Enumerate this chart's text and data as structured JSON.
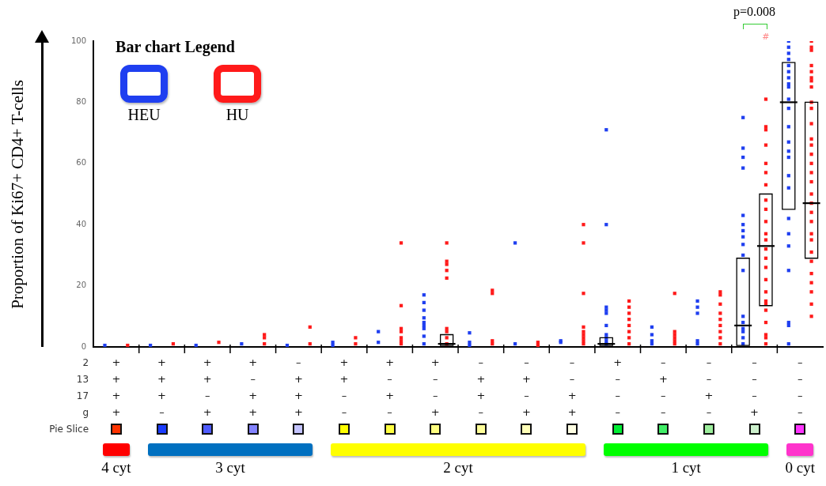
{
  "chart_data": {
    "type": "box",
    "ylabel": "Proportion of Ki67+ CD4+ T-cells",
    "legend_title": "Bar chart Legend",
    "legend": "top left",
    "marker": "square",
    "categories": [
      "+\n+\n+\n+",
      "+\n+\n+\n–",
      "+\n+\n–\n+",
      "+\n–\n+\n+",
      "–\n+\n+\n+",
      "+\n+\n–\n–",
      "+\n–\n+\n–",
      "+\n–\n–\n+",
      "–\n+\n+\n–",
      "–\n+\n–\n+",
      "–\n–\n+\n+",
      "+\n–\n–\n–",
      "–\n+\n–\n–",
      "–\n–\n+\n–",
      "–\n–\n–\n+",
      "–\n–\n–\n–"
    ],
    "ylim": [
      0,
      100
    ],
    "yticks": [
      0,
      20,
      40,
      60,
      80,
      100
    ],
    "annotations": [
      "2",
      "13",
      "17",
      "g",
      "Pie Slice",
      "4 cyt",
      "3 cyt",
      "2 cyt",
      "1 cyt",
      "0 cyt",
      "p=0.008",
      "#"
    ],
    "series": [
      {
        "color": "#000000",
        "boxes": [
          null,
          null,
          null,
          null,
          null,
          null,
          null,
          null,
          null,
          null,
          null,
          {
            "low": 0.5,
            "q1": 0.5,
            "median": 1,
            "q3": 3,
            "high": 3
          },
          null,
          null,
          {
            "low": 0.5,
            "q1": 0.5,
            "median": 7,
            "q3": 29,
            "high": 29
          },
          {
            "low": 45,
            "q1": 45,
            "median": 80,
            "q3": 93,
            "high": 93
          }
        ]
      },
      {
        "color": "#000000",
        "boxes": [
          null,
          null,
          null,
          null,
          null,
          null,
          null,
          {
            "low": 0.5,
            "q1": 0.5,
            "median": 1,
            "q3": 4,
            "high": 4
          },
          null,
          null,
          null,
          null,
          null,
          null,
          {
            "low": 13.5,
            "q1": 13.5,
            "median": 33,
            "q3": 50,
            "high": 50
          },
          {
            "low": 29,
            "q1": 29,
            "median": 47,
            "q3": 80,
            "high": 80
          }
        ]
      },
      {
        "type": "scatter",
        "name": "HEU",
        "color": "#1f3ff0",
        "x": [
          "+\n+\n+\n+",
          "+\n+\n+\n–",
          "+\n+\n–\n+",
          "+\n–\n+\n+",
          "–\n+\n+\n+",
          "+\n+\n–\n–",
          "+\n+\n–\n–",
          "+\n–\n+\n–",
          "+\n–\n+\n–",
          "+\n–\n–\n+",
          "+\n–\n–\n+",
          "+\n–\n–\n+",
          "+\n–\n–\n+",
          "+\n–\n–\n+",
          "+\n–\n–\n+",
          "+\n–\n–\n+",
          "+\n–\n–\n+",
          "+\n–\n–\n+",
          "–\n+\n+\n–",
          "–\n+\n+\n–",
          "–\n+\n+\n–",
          "–\n+\n–\n+",
          "–\n+\n–\n+",
          "–\n–\n+\n+",
          "–\n–\n+\n+",
          "+\n–\n–\n–",
          "+\n–\n–\n–",
          "+\n–\n–\n–",
          "+\n–\n–\n–",
          "+\n–\n–\n–",
          "+\n–\n–\n–",
          "+\n–\n–\n–",
          "+\n–\n–\n–",
          "+\n–\n–\n–",
          "+\n–\n–\n–",
          "–\n+\n–\n–",
          "–\n+\n–\n–",
          "–\n+\n–\n–",
          "–\n+\n–\n–",
          "–\n–\n+\n–",
          "–\n–\n+\n–",
          "–\n–\n+\n–",
          "–\n–\n+\n–",
          "–\n–\n+\n–",
          "–\n–\n–\n+",
          "–\n–\n–\n+",
          "–\n–\n–\n+",
          "–\n–\n–\n+",
          "–\n–\n–\n+",
          "–\n–\n–\n+",
          "–\n–\n–\n+",
          "–\n–\n–\n+",
          "–\n–\n–\n+",
          "–\n–\n–\n+",
          "–\n–\n–\n+",
          "–\n–\n–\n+",
          "–\n–\n–\n+",
          "–\n–\n–\n+",
          "–\n–\n–\n+",
          "–\n–\n–\n+",
          "–\n–\n–\n+",
          "–\n–\n–\n–",
          "–\n–\n–\n–",
          "–\n–\n–\n–",
          "–\n–\n–\n–",
          "–\n–\n–\n–",
          "–\n–\n–\n–",
          "–\n–\n–\n–",
          "–\n–\n–\n–",
          "–\n–\n–\n–",
          "–\n–\n–\n–",
          "–\n–\n–\n–",
          "–\n–\n–\n–",
          "–\n–\n–\n–",
          "–\n–\n–\n–",
          "–\n–\n–\n–",
          "–\n–\n–\n–",
          "–\n–\n–\n–",
          "–\n–\n–\n–",
          "–\n–\n–\n–",
          "–\n–\n–\n–",
          "–\n–\n–\n–",
          "–\n–\n–\n–",
          "–\n–\n–\n–",
          "–\n–\n–\n–"
        ],
        "values": [
          0.5,
          0.5,
          0.5,
          1,
          0.5,
          1.5,
          0.5,
          5,
          1.5,
          17,
          14.5,
          12,
          9.5,
          8,
          7,
          6,
          3.5,
          1,
          4.6,
          1.5,
          0.5,
          34,
          1,
          2,
          1.5,
          71,
          40,
          13,
          12,
          11,
          7,
          4,
          3,
          2,
          1,
          6.5,
          4,
          2,
          1,
          15,
          13,
          11,
          2,
          1,
          75,
          65,
          62,
          58.5,
          43,
          40,
          38,
          36,
          33.5,
          30,
          25,
          10,
          8,
          6,
          5,
          3,
          1,
          100,
          98,
          96,
          94,
          92,
          90,
          88,
          86,
          85,
          81,
          78,
          72,
          67,
          64,
          62,
          56,
          52,
          42,
          37,
          33,
          25,
          8,
          7,
          1
        ]
      },
      {
        "type": "scatter",
        "name": "HU",
        "color": "#ff1a1a",
        "x": [
          "+\n+\n+\n+",
          "+\n+\n+\n–",
          "+\n+\n–\n+",
          "+\n–\n+\n+",
          "+\n–\n+\n+",
          "+\n–\n+\n+",
          "–\n+\n+\n+",
          "–\n+\n+\n+",
          "+\n+\n–\n–",
          "+\n+\n–\n–",
          "+\n–\n+\n–",
          "+\n–\n+\n–",
          "+\n–\n+\n–",
          "+\n–\n+\n–",
          "+\n–\n+\n–",
          "+\n–\n+\n–",
          "+\n–\n+\n–",
          "+\n–\n–\n+",
          "+\n–\n–\n+",
          "+\n–\n–\n+",
          "+\n–\n–\n+",
          "+\n–\n–\n+",
          "+\n–\n–\n+",
          "+\n–\n–\n+",
          "+\n–\n–\n+",
          "+\n–\n–\n+",
          "–\n+\n+\n–",
          "–\n+\n+\n–",
          "–\n+\n+\n–",
          "–\n+\n+\n–",
          "–\n+\n–\n+",
          "–\n+\n–\n+",
          "–\n–\n+\n+",
          "–\n–\n+\n+",
          "–\n–\n+\n+",
          "–\n–\n+\n+",
          "–\n–\n+\n+",
          "–\n–\n+\n+",
          "–\n–\n+\n+",
          "–\n–\n+\n+",
          "–\n–\n+\n+",
          "+\n–\n–\n–",
          "+\n–\n–\n–",
          "+\n–\n–\n–",
          "+\n–\n–\n–",
          "+\n–\n–\n–",
          "+\n–\n–\n–",
          "+\n–\n–\n–",
          "+\n–\n–\n–",
          "–\n+\n–\n–",
          "–\n+\n–\n–",
          "–\n+\n–\n–",
          "–\n+\n–\n–",
          "–\n+\n–\n–",
          "–\n+\n–\n–",
          "–\n–\n+\n–",
          "–\n–\n+\n–",
          "–\n–\n+\n–",
          "–\n–\n+\n–",
          "–\n–\n+\n–",
          "–\n–\n+\n–",
          "–\n–\n+\n–",
          "–\n–\n+\n–",
          "–\n–\n+\n–",
          "–\n–\n–\n+",
          "–\n–\n–\n+",
          "–\n–\n–\n+",
          "–\n–\n–\n+",
          "–\n–\n–\n+",
          "–\n–\n–\n+",
          "–\n–\n–\n+",
          "–\n–\n–\n+",
          "–\n–\n–\n+",
          "–\n–\n–\n+",
          "–\n–\n–\n+",
          "–\n–\n–\n+",
          "–\n–\n–\n+",
          "–\n–\n–\n+",
          "–\n–\n–\n+",
          "–\n–\n–\n+",
          "–\n–\n–\n+",
          "–\n–\n–\n+",
          "–\n–\n–\n+",
          "–\n–\n–\n+",
          "–\n–\n–\n+",
          "–\n–\n–\n+",
          "–\n–\n–\n+",
          "–\n–\n–\n+",
          "–\n–\n–\n–",
          "–\n–\n–\n–",
          "–\n–\n–\n–",
          "–\n–\n–\n–",
          "–\n–\n–\n–",
          "–\n–\n–\n–",
          "–\n–\n–\n–",
          "–\n–\n–\n–",
          "–\n–\n–\n–",
          "–\n–\n–\n–",
          "–\n–\n–\n–",
          "–\n–\n–\n–",
          "–\n–\n–\n–",
          "–\n–\n–\n–",
          "–\n–\n–\n–",
          "–\n–\n–\n–",
          "–\n–\n–\n–",
          "–\n–\n–\n–",
          "–\n–\n–\n–",
          "–\n–\n–\n–",
          "–\n–\n–\n–",
          "–\n–\n–\n–",
          "–\n–\n–\n–",
          "–\n–\n–\n–",
          "–\n–\n–\n–",
          "–\n–\n–\n–",
          "–\n–\n–\n–",
          "–\n–\n–\n–",
          "–\n–\n–\n–",
          "–\n–\n–\n–"
        ],
        "values": [
          0.5,
          1,
          1.5,
          4,
          3,
          1,
          6.5,
          1,
          3,
          1,
          34,
          13.5,
          6,
          5,
          3,
          2,
          1,
          34,
          28,
          27,
          25,
          22.5,
          6,
          5,
          3,
          1,
          18.5,
          17.5,
          2,
          1,
          1.5,
          0.5,
          40,
          34,
          17.5,
          6.5,
          5,
          4,
          3,
          2,
          1,
          15,
          13,
          11,
          9,
          7,
          5,
          3,
          1,
          17.5,
          5,
          4,
          3,
          2,
          1,
          18,
          17,
          14,
          11,
          9,
          7,
          5,
          3,
          1,
          81,
          72,
          71,
          66,
          60,
          57,
          53,
          48,
          45,
          41,
          37,
          35,
          32,
          29,
          26,
          22,
          18,
          15,
          14,
          12,
          8,
          4,
          3,
          1,
          100,
          98,
          97,
          92,
          90,
          88,
          87,
          85,
          80,
          78,
          73,
          68,
          66,
          63,
          60,
          57,
          54,
          50,
          47,
          44,
          41,
          37,
          35,
          31,
          28,
          24,
          21,
          18,
          14,
          10
        ]
      }
    ]
  }
}
